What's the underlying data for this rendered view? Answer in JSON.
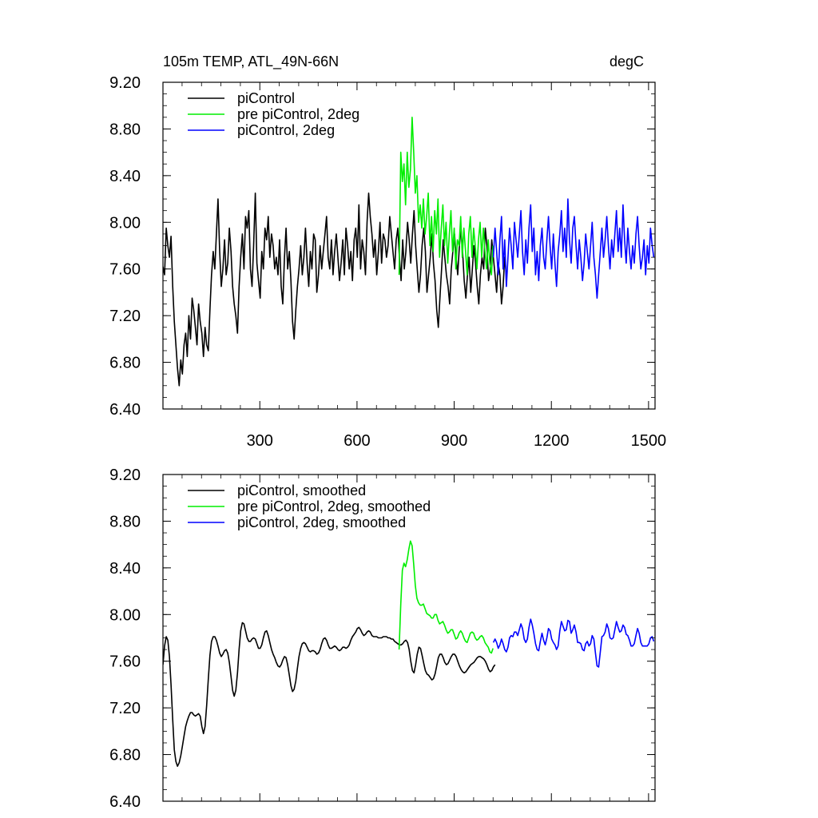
{
  "header": {
    "title": "105m TEMP, ATL_49N-66N",
    "units": "degC"
  },
  "colors": {
    "piControl": "#000000",
    "pre_piControl_2deg": "#00ee00",
    "piControl_2deg": "#0000ff"
  },
  "chart_data": [
    {
      "type": "line",
      "title": "105m TEMP, ATL_49N-66N",
      "ylabel_right": "degC",
      "xlim": [
        1,
        1520
      ],
      "ylim": [
        6.4,
        9.2
      ],
      "x_ticks": [
        300,
        600,
        900,
        1200,
        1500
      ],
      "x_tick_labels": [
        "300",
        "600",
        "900",
        "1200",
        "1500"
      ],
      "y_ticks": [
        6.4,
        6.8,
        7.2,
        7.6,
        8.0,
        8.4,
        8.8,
        9.2
      ],
      "y_tick_labels": [
        "6.40",
        "6.80",
        "7.20",
        "7.60",
        "8.00",
        "8.40",
        "8.80",
        "9.20"
      ],
      "legend": "top-left",
      "series": [
        {
          "name": "piControl",
          "color": "#000000",
          "x_start": 1,
          "x_step": 5,
          "values": [
            7.62,
            7.55,
            7.95,
            7.8,
            7.7,
            7.88,
            7.45,
            7.15,
            6.95,
            6.75,
            6.6,
            6.82,
            6.7,
            6.95,
            7.05,
            6.85,
            7.2,
            7.0,
            7.35,
            7.25,
            7.1,
            6.95,
            7.3,
            7.15,
            7.05,
            6.85,
            7.1,
            6.95,
            6.9,
            7.25,
            7.55,
            7.75,
            7.6,
            7.9,
            8.2,
            7.75,
            7.45,
            7.6,
            7.85,
            7.55,
            7.65,
            7.95,
            7.75,
            7.45,
            7.3,
            7.2,
            7.05,
            7.45,
            7.7,
            7.9,
            7.6,
            8.05,
            7.95,
            8.1,
            7.6,
            7.45,
            7.8,
            8.25,
            7.65,
            7.5,
            7.35,
            7.75,
            7.6,
            7.95,
            7.85,
            8.05,
            7.7,
            7.9,
            7.8,
            7.6,
            7.7,
            7.55,
            7.85,
            7.45,
            7.3,
            7.7,
            7.95,
            7.6,
            7.75,
            7.5,
            7.15,
            7.0,
            7.25,
            7.45,
            7.6,
            7.8,
            7.55,
            7.7,
            7.95,
            7.65,
            7.45,
            7.75,
            7.6,
            7.9,
            7.85,
            7.4,
            7.55,
            7.8,
            7.6,
            7.75,
            7.9,
            8.05,
            7.7,
            7.6,
            7.85,
            7.55,
            7.75,
            7.9,
            7.7,
            7.5,
            7.65,
            7.85,
            7.55,
            7.95,
            7.8,
            7.6,
            7.75,
            7.5,
            7.85,
            7.95,
            7.7,
            8.15,
            7.6,
            7.85,
            7.75,
            7.55,
            8.0,
            8.25,
            8.05,
            7.9,
            7.7,
            7.85,
            7.55,
            7.75,
            8.0,
            7.65,
            7.9,
            7.85,
            7.7,
            7.8,
            8.05,
            7.9,
            7.75,
            7.6,
            7.85,
            7.95,
            7.7,
            7.5,
            7.85,
            7.6,
            7.75,
            8.0,
            7.85,
            7.65,
            7.9,
            8.1,
            7.8,
            7.6,
            7.4,
            7.55,
            7.8,
            7.95,
            7.75,
            7.4,
            7.55,
            7.7,
            7.9,
            7.65,
            7.5,
            7.25,
            7.1,
            7.35,
            7.6,
            7.85,
            7.7,
            7.55,
            7.45,
            7.3,
            7.6,
            7.75,
            7.9,
            7.7,
            7.55,
            7.8,
            7.95,
            7.75,
            7.5,
            7.35,
            7.55,
            7.7,
            7.4,
            7.6,
            7.8,
            7.65,
            7.45,
            7.3,
            7.55,
            7.7,
            7.6,
            7.95,
            7.8,
            7.5,
            7.6,
            7.85,
            7.7,
            7.55,
            7.4,
            7.65,
            7.55,
            7.3,
            7.45,
            7.7,
            7.55
          ]
        },
        {
          "name": "pre piControl, 2deg",
          "color": "#00ee00",
          "x_start": 730,
          "x_step": 5,
          "values": [
            7.55,
            8.6,
            8.35,
            8.5,
            8.15,
            8.6,
            8.3,
            8.45,
            8.9,
            8.6,
            8.25,
            8.4,
            8.0,
            8.15,
            7.95,
            8.2,
            7.9,
            8.05,
            8.25,
            7.8,
            8.05,
            7.75,
            8.1,
            7.9,
            8.2,
            7.7,
            7.95,
            8.15,
            7.8,
            8.0,
            7.65,
            7.9,
            8.1,
            7.75,
            7.95,
            7.6,
            7.85,
            7.8,
            8.05,
            7.7,
            7.95,
            7.75,
            7.55,
            7.9,
            8.05,
            7.7,
            7.95,
            7.8,
            7.6,
            7.85,
            8.0,
            7.7,
            7.95,
            7.75,
            7.6,
            7.85,
            7.65,
            7.55,
            7.8
          ]
        },
        {
          "name": "piControl, 2deg",
          "color": "#0000ff",
          "x_start": 1021,
          "x_step": 5,
          "values": [
            7.7,
            7.95,
            7.75,
            7.55,
            7.85,
            8.05,
            7.6,
            7.85,
            7.45,
            7.7,
            7.95,
            7.8,
            7.6,
            8.0,
            7.85,
            7.7,
            7.9,
            8.1,
            7.75,
            7.55,
            7.85,
            7.65,
            7.95,
            8.15,
            7.75,
            7.95,
            7.55,
            7.75,
            7.5,
            7.8,
            7.95,
            7.7,
            7.6,
            7.85,
            8.05,
            7.8,
            7.6,
            7.9,
            7.65,
            7.45,
            7.75,
            7.9,
            8.1,
            7.75,
            7.95,
            7.7,
            8.2,
            7.85,
            7.65,
            7.95,
            8.05,
            7.8,
            7.6,
            7.85,
            7.7,
            7.5,
            7.65,
            7.9,
            7.75,
            7.6,
            7.8,
            8.0,
            7.7,
            7.55,
            7.35,
            7.55,
            7.75,
            7.95,
            7.7,
            7.85,
            8.05,
            7.8,
            7.6,
            7.85,
            7.7,
            7.9,
            8.1,
            7.75,
            7.95,
            7.7,
            8.15,
            7.85,
            7.65,
            7.95,
            7.75,
            7.6,
            7.8,
            7.65,
            7.9,
            8.05,
            7.8,
            7.6,
            7.7,
            7.85,
            7.55,
            7.8,
            7.65,
            7.95,
            7.8,
            7.7
          ]
        }
      ]
    },
    {
      "type": "line",
      "xlim": [
        1,
        1520
      ],
      "ylim": [
        6.4,
        9.2
      ],
      "x_ticks": [
        300,
        600,
        900,
        1200,
        1500
      ],
      "y_ticks": [
        6.4,
        6.8,
        7.2,
        7.6,
        8.0,
        8.4,
        8.8,
        9.2
      ],
      "y_tick_labels": [
        "6.40",
        "6.80",
        "7.20",
        "7.60",
        "8.00",
        "8.40",
        "8.80",
        "9.20"
      ],
      "legend": "top-left",
      "series": [
        {
          "name": "piControl, smoothed",
          "color": "#000000",
          "x_start": 1,
          "x_step": 5,
          "values": [
            7.57,
            7.73,
            7.81,
            7.78,
            7.64,
            7.4,
            7.1,
            6.84,
            6.74,
            6.7,
            6.73,
            6.79,
            6.87,
            6.96,
            7.04,
            7.09,
            7.13,
            7.16,
            7.16,
            7.14,
            7.13,
            7.14,
            7.15,
            7.13,
            7.04,
            6.98,
            7.04,
            7.22,
            7.45,
            7.65,
            7.77,
            7.81,
            7.81,
            7.78,
            7.73,
            7.67,
            7.64,
            7.66,
            7.69,
            7.7,
            7.67,
            7.59,
            7.47,
            7.35,
            7.3,
            7.35,
            7.5,
            7.7,
            7.86,
            7.93,
            7.92,
            7.86,
            7.8,
            7.77,
            7.77,
            7.79,
            7.8,
            7.79,
            7.75,
            7.71,
            7.71,
            7.74,
            7.8,
            7.85,
            7.86,
            7.82,
            7.76,
            7.7,
            7.66,
            7.63,
            7.59,
            7.56,
            7.55,
            7.57,
            7.61,
            7.64,
            7.63,
            7.57,
            7.48,
            7.39,
            7.34,
            7.36,
            7.43,
            7.54,
            7.64,
            7.71,
            7.75,
            7.76,
            7.75,
            7.72,
            7.69,
            7.68,
            7.69,
            7.69,
            7.68,
            7.66,
            7.67,
            7.7,
            7.75,
            7.79,
            7.8,
            7.78,
            7.74,
            7.71,
            7.71,
            7.72,
            7.73,
            7.72,
            7.7,
            7.69,
            7.7,
            7.72,
            7.72,
            7.71,
            7.72,
            7.74,
            7.78,
            7.81,
            7.83,
            7.85,
            7.88,
            7.89,
            7.87,
            7.84,
            7.82,
            7.83,
            7.85,
            7.86,
            7.85,
            7.82,
            7.81,
            7.81,
            7.81,
            7.8,
            7.8,
            7.8,
            7.81,
            7.81,
            7.81,
            7.8,
            7.8,
            7.79,
            7.79,
            7.77,
            7.76,
            7.75,
            7.74,
            7.74,
            7.75,
            7.77,
            7.78,
            7.76,
            7.7,
            7.6,
            7.52,
            7.5,
            7.57,
            7.66,
            7.72,
            7.71,
            7.65,
            7.58,
            7.52,
            7.49,
            7.48,
            7.46,
            7.44,
            7.45,
            7.49,
            7.56,
            7.63,
            7.66,
            7.66,
            7.63,
            7.59,
            7.57,
            7.58,
            7.61,
            7.64,
            7.66,
            7.66,
            7.64,
            7.6,
            7.56,
            7.53,
            7.51,
            7.5,
            7.51,
            7.53,
            7.55,
            7.57,
            7.58,
            7.59,
            7.61,
            7.63,
            7.64,
            7.64,
            7.63,
            7.62,
            7.6,
            7.57,
            7.53,
            7.51,
            7.52,
            7.55,
            7.57
          ]
        },
        {
          "name": "pre piControl, 2deg, smoothed",
          "color": "#00ee00",
          "x_start": 730,
          "x_step": 5,
          "values": [
            7.7,
            8.09,
            8.38,
            8.44,
            8.41,
            8.47,
            8.56,
            8.63,
            8.59,
            8.43,
            8.25,
            8.14,
            8.1,
            8.08,
            8.08,
            8.09,
            8.05,
            8.01,
            8.0,
            7.99,
            7.97,
            7.97,
            8.0,
            8.0,
            7.95,
            7.92,
            7.93,
            7.94,
            7.91,
            7.87,
            7.84,
            7.85,
            7.87,
            7.87,
            7.83,
            7.79,
            7.8,
            7.84,
            7.86,
            7.84,
            7.8,
            7.77,
            7.76,
            7.8,
            7.84,
            7.85,
            7.84,
            7.8,
            7.78,
            7.79,
            7.81,
            7.82,
            7.8,
            7.76,
            7.74,
            7.72,
            7.68,
            7.67,
            7.71
          ]
        },
        {
          "name": "piControl, 2deg, smoothed",
          "color": "#0000ff",
          "x_start": 1021,
          "x_step": 5,
          "values": [
            7.76,
            7.79,
            7.76,
            7.71,
            7.74,
            7.79,
            7.75,
            7.7,
            7.68,
            7.72,
            7.8,
            7.82,
            7.81,
            7.85,
            7.85,
            7.82,
            7.87,
            7.92,
            7.88,
            7.79,
            7.76,
            7.79,
            7.89,
            7.96,
            7.91,
            7.84,
            7.75,
            7.7,
            7.69,
            7.77,
            7.84,
            7.78,
            7.74,
            7.8,
            7.88,
            7.86,
            7.79,
            7.76,
            7.74,
            7.7,
            7.73,
            7.86,
            7.94,
            7.9,
            7.86,
            7.87,
            7.95,
            7.94,
            7.84,
            7.87,
            7.91,
            7.85,
            7.76,
            7.76,
            7.75,
            7.7,
            7.69,
            7.75,
            7.77,
            7.73,
            7.75,
            7.82,
            7.79,
            7.67,
            7.56,
            7.55,
            7.68,
            7.81,
            7.82,
            7.85,
            7.92,
            7.88,
            7.8,
            7.79,
            7.8,
            7.87,
            7.94,
            7.89,
            7.85,
            7.86,
            7.91,
            7.89,
            7.83,
            7.82,
            7.78,
            7.73,
            7.73,
            7.75,
            7.82,
            7.88,
            7.84,
            7.76,
            7.73,
            7.73,
            7.73,
            7.73,
            7.75,
            7.8,
            7.81,
            7.77
          ]
        }
      ]
    }
  ]
}
